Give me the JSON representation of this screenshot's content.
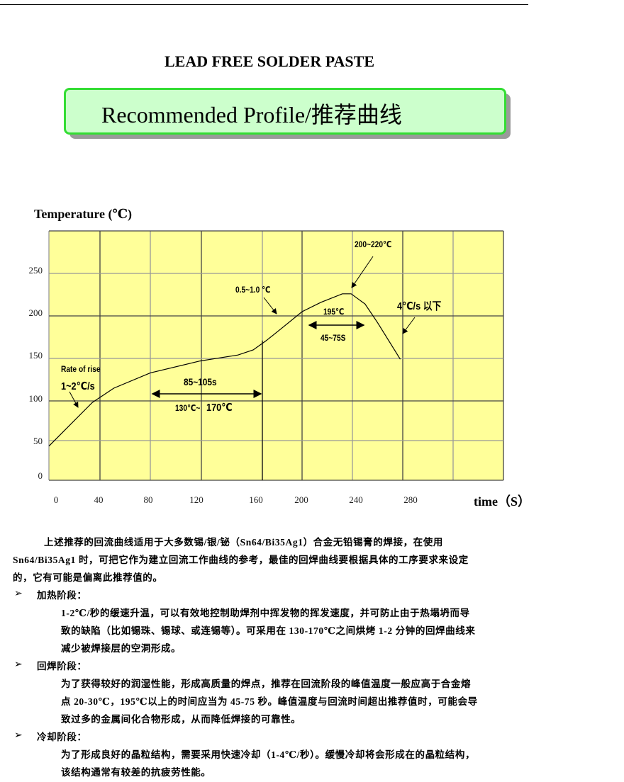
{
  "header": {
    "title": "LEAD FREE SOLDER PASTE",
    "banner": "Recommended Profile/推荐曲线",
    "banner_color": "#ccffcc",
    "banner_border": "#33dd33"
  },
  "chart_data": {
    "type": "line",
    "ylabel": "Temperature (℃)",
    "xlabel": "time（S）",
    "x_ticks": [
      "0",
      "40",
      "80",
      "120",
      "160",
      "200",
      "240",
      "280"
    ],
    "y_ticks": [
      "0",
      "50",
      "100",
      "150",
      "200",
      "250"
    ],
    "ylim": [
      0,
      300
    ],
    "xlim": [
      0,
      360
    ],
    "grid": true,
    "background": "#ffff99",
    "series": [
      {
        "x": [
          0,
          34,
          51,
          80,
          119,
          144,
          154,
          164,
          180,
          200,
          215,
          232,
          239,
          250,
          260,
          278
        ],
        "y": [
          43,
          98,
          115,
          133,
          147,
          154,
          160,
          171,
          186,
          205,
          216,
          226,
          226,
          214,
          192,
          149
        ]
      }
    ],
    "annotations": {
      "rate_title": "Rate of rise",
      "rate_value": "1~2℃/s",
      "soak_time": "85~105s",
      "soak_temp_a": "130℃~",
      "soak_temp_b": "170℃",
      "ramp": "0.5~1.0 ℃",
      "peak": "200~220℃",
      "liquidus": "195℃",
      "tal": "45~75S",
      "cool": "4℃/s 以下"
    }
  },
  "body": {
    "intro": [
      "上述推荐的回流曲线适用于大多数锡/银/铋（Sn64/Bi35Ag1）合金无铅锡膏的焊接，在使用",
      "Sn64/Bi35Ag1 时，可把它作为建立回流工作曲线的参考，最佳的回焊曲线要根据具体的工序要求来设定",
      "的，它有可能是偏离此推荐值的。"
    ],
    "sections": [
      {
        "title": "加热阶段：",
        "lines": [
          "1-2℃/秒的缓速升温，可以有效地控制助焊剂中挥发物的挥发速度，并可防止由于热塌坍而导",
          "致的缺陷（比如锡珠、锡球、或连锡等）。可采用在 130-170℃之间烘烤 1-2 分钟的回焊曲线来",
          "减少被焊接层的空洞形成。"
        ]
      },
      {
        "title": "回焊阶段：",
        "lines": [
          "为了获得较好的润湿性能，形成高质量的焊点，推荐在回流阶段的峰值温度一般应高于合金熔",
          "点 20-30℃，195℃以上的时间应当为 45-75 秒。峰值温度与回流时间超出推荐值时，可能会导",
          "致过多的金属间化合物形成，从而降低焊接的可靠性。"
        ]
      },
      {
        "title": "冷却阶段：",
        "lines": [
          "为了形成良好的晶粒结构，需要采用快速冷却（1-4℃/秒）。缓慢冷却将会形成在的晶粒结构，",
          "该结构通常有较差的抗疲劳性能。"
        ]
      }
    ],
    "bullet": "➢"
  }
}
